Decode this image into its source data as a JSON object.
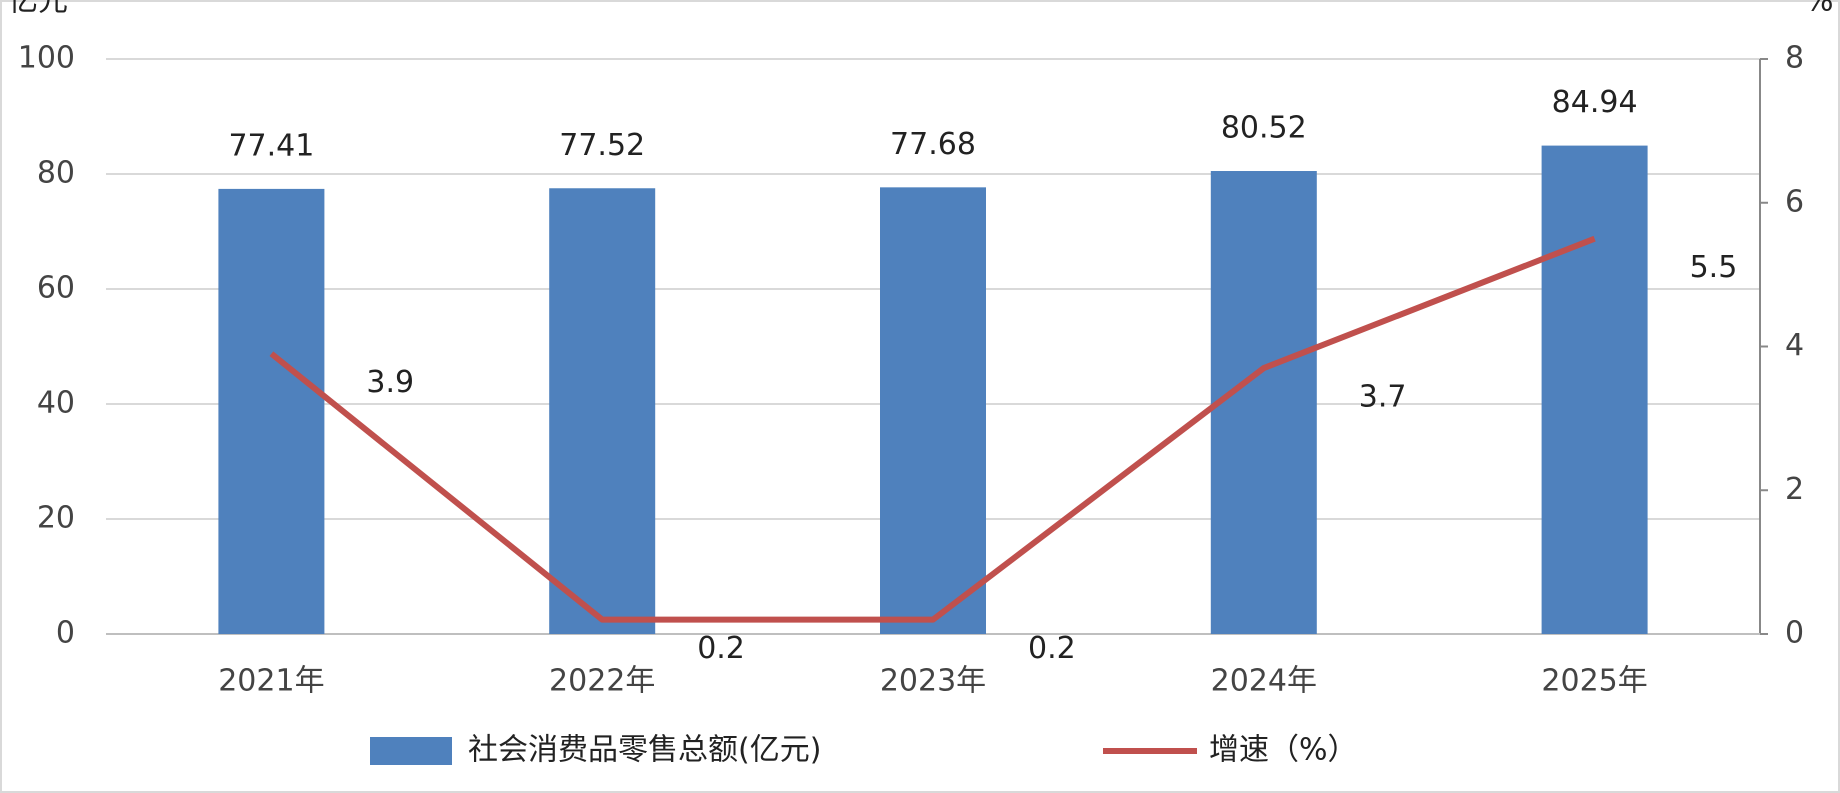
{
  "chart_data": {
    "type": "bar_line",
    "y_label": "亿元",
    "y2_label": "%",
    "categories": [
      "2021年",
      "2022年",
      "2023年",
      "2024年",
      "2025年"
    ],
    "series": [
      {
        "name": "社会消费品零售总额(亿元)",
        "type": "bar",
        "color": "#4f81bd",
        "values": [
          77.41,
          77.52,
          77.68,
          80.52,
          84.94
        ]
      },
      {
        "name": "增速（%）",
        "type": "line",
        "axis": "y2",
        "color": "#c0504d",
        "values": [
          3.9,
          0.2,
          0.2,
          3.7,
          5.5
        ]
      }
    ],
    "ylim": [
      0,
      100
    ],
    "yticks": [
      0,
      20,
      40,
      60,
      80,
      100
    ],
    "y2lim": [
      0,
      8
    ],
    "y2ticks": [
      0,
      2,
      4,
      6,
      8
    ],
    "grid": true,
    "legend": "bottom"
  }
}
